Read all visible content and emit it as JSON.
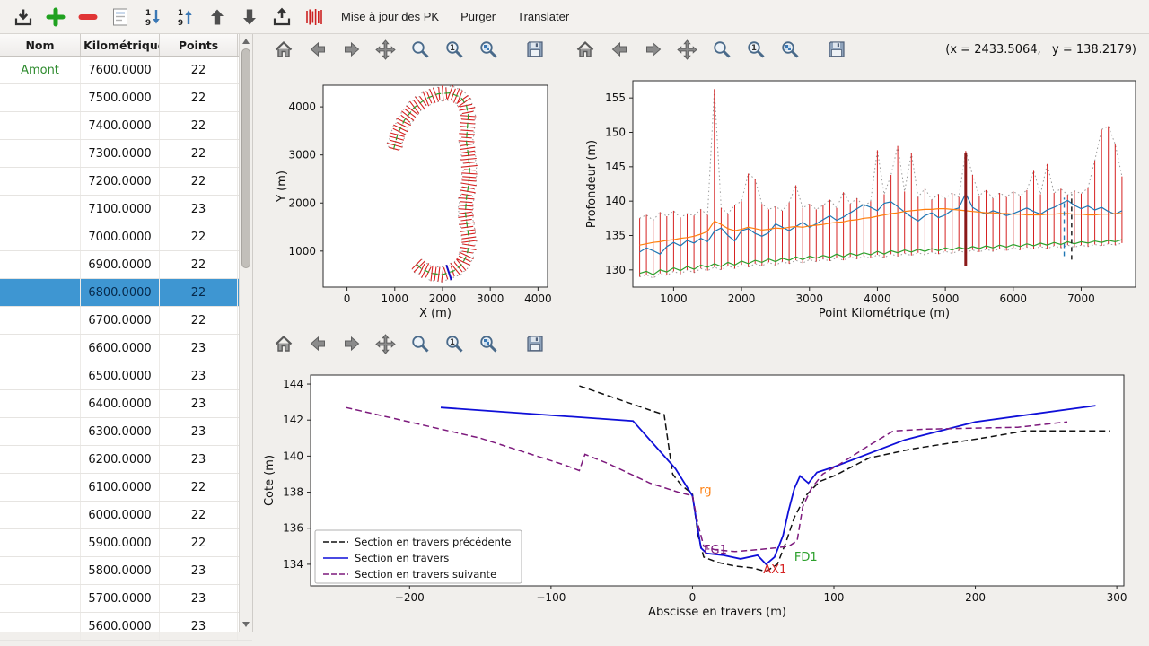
{
  "toolbar": {
    "icon_buttons": [
      "import",
      "add",
      "remove",
      "edit",
      "sort-descending",
      "sort-ascending",
      "move-up",
      "move-down",
      "export",
      "sections"
    ],
    "update_pk_label": "Mise à jour des PK",
    "purge_label": "Purger",
    "translate_label": "Translater"
  },
  "colors": {
    "selection_bg": "#3e96d2",
    "selection_text": "#07294a",
    "amont_green": "#2e8b2e"
  },
  "table": {
    "columns": [
      "Nom",
      "t Kilométrique",
      "Points"
    ],
    "selected_index": 8,
    "rows": [
      [
        "Amont",
        "7600.0000",
        "22"
      ],
      [
        "",
        "7500.0000",
        "22"
      ],
      [
        "",
        "7400.0000",
        "22"
      ],
      [
        "",
        "7300.0000",
        "22"
      ],
      [
        "",
        "7200.0000",
        "22"
      ],
      [
        "",
        "7100.0000",
        "23"
      ],
      [
        "",
        "7000.0000",
        "22"
      ],
      [
        "",
        "6900.0000",
        "22"
      ],
      [
        "",
        "6800.0000",
        "22"
      ],
      [
        "",
        "6700.0000",
        "22"
      ],
      [
        "",
        "6600.0000",
        "23"
      ],
      [
        "",
        "6500.0000",
        "23"
      ],
      [
        "",
        "6400.0000",
        "23"
      ],
      [
        "",
        "6300.0000",
        "23"
      ],
      [
        "",
        "6200.0000",
        "23"
      ],
      [
        "",
        "6100.0000",
        "22"
      ],
      [
        "",
        "6000.0000",
        "22"
      ],
      [
        "",
        "5900.0000",
        "22"
      ],
      [
        "",
        "5800.0000",
        "23"
      ],
      [
        "",
        "5700.0000",
        "23"
      ],
      [
        "",
        "5600.0000",
        "23"
      ]
    ]
  },
  "figures": {
    "coords_readout": "(x = 2433.5064,   y = 138.2179)"
  },
  "chart_data": [
    {
      "id": "plan",
      "type": "line",
      "title": "",
      "xlabel": "X (m)",
      "ylabel": "Y (m)",
      "xlim": [
        -500,
        4200
      ],
      "ylim": [
        250,
        4450
      ],
      "xticks": [
        0,
        1000,
        2000,
        3000,
        4000
      ],
      "yticks": [
        1000,
        2000,
        3000,
        4000
      ],
      "centerline_color": "#2ca02c",
      "section_color": "#d62222",
      "envelope_color": "#9a9a9a",
      "highlight_color": "#1111cc",
      "section_spacing": 75,
      "section_halfwidth": 150,
      "highlight_fraction": 0.887,
      "centerline": [
        [
          980,
          3130
        ],
        [
          1060,
          3430
        ],
        [
          1200,
          3720
        ],
        [
          1400,
          3980
        ],
        [
          1650,
          4170
        ],
        [
          1900,
          4270
        ],
        [
          2150,
          4290
        ],
        [
          2380,
          4200
        ],
        [
          2500,
          4030
        ],
        [
          2540,
          3820
        ],
        [
          2520,
          3560
        ],
        [
          2500,
          3280
        ],
        [
          2540,
          3000
        ],
        [
          2570,
          2700
        ],
        [
          2550,
          2400
        ],
        [
          2500,
          2100
        ],
        [
          2480,
          1800
        ],
        [
          2520,
          1500
        ],
        [
          2560,
          1200
        ],
        [
          2520,
          950
        ],
        [
          2420,
          740
        ],
        [
          2240,
          590
        ],
        [
          2000,
          510
        ],
        [
          1750,
          540
        ],
        [
          1550,
          640
        ],
        [
          1450,
          740
        ]
      ]
    },
    {
      "id": "profile",
      "type": "line",
      "title": "",
      "xlabel": "Point Kilométrique (m)",
      "ylabel": "Profondeur (m)",
      "xlim": [
        400,
        7800
      ],
      "ylim": [
        127.5,
        157.5
      ],
      "xticks": [
        1000,
        2000,
        3000,
        4000,
        5000,
        6000,
        7000
      ],
      "yticks": [
        130,
        135,
        140,
        145,
        150,
        155
      ],
      "bar_color": "#d62222",
      "envelope_color": "#9a9a9a",
      "pk_start": 500,
      "pk_step": 100,
      "bar_bottom": [
        129.0,
        129.3,
        128.8,
        129.5,
        129.2,
        129.8,
        129.4,
        130.0,
        129.6,
        130.2,
        129.9,
        130.4,
        130.0,
        130.6,
        130.2,
        130.8,
        130.4,
        130.9,
        130.6,
        131.1,
        130.7,
        131.2,
        130.9,
        131.4,
        131.0,
        131.5,
        131.2,
        131.6,
        131.3,
        131.8,
        131.4,
        131.9,
        131.6,
        132.0,
        131.7,
        132.2,
        131.8,
        132.3,
        132.0,
        132.4,
        132.1,
        132.5,
        132.2,
        132.6,
        132.3,
        132.7,
        132.4,
        132.8,
        132.5,
        132.9,
        132.6,
        133.0,
        132.7,
        133.1,
        132.8,
        133.2,
        132.9,
        133.3,
        133.0,
        133.4,
        133.1,
        133.5,
        133.2,
        133.6,
        133.3,
        133.6,
        133.4,
        133.7,
        133.5,
        133.8,
        133.6,
        133.9
      ],
      "bar_top": [
        137.5,
        138.0,
        137.2,
        138.4,
        137.8,
        138.6,
        137.6,
        138.2,
        137.9,
        138.8,
        138.0,
        156.3,
        139.0,
        138.2,
        139.4,
        140.0,
        144.0,
        143.2,
        139.6,
        138.8,
        139.2,
        138.6,
        139.8,
        142.3,
        139.0,
        139.6,
        138.8,
        139.4,
        140.2,
        139.0,
        141.3,
        139.6,
        140.4,
        139.2,
        140.0,
        147.4,
        141.0,
        143.8,
        148.0,
        141.4,
        147.0,
        140.6,
        141.8,
        140.2,
        141.0,
        140.4,
        141.2,
        140.6,
        147.3,
        143.8,
        140.8,
        141.6,
        140.4,
        141.2,
        140.6,
        141.4,
        140.8,
        141.6,
        144.4,
        141.0,
        145.4,
        141.2,
        141.8,
        140.9,
        141.5,
        141.1,
        141.9,
        145.9,
        150.4,
        150.9,
        148.3,
        143.6
      ],
      "series": [
        {
          "name": "blue",
          "color": "#1f77b4",
          "values": [
            132.6,
            133.2,
            132.8,
            132.3,
            133.4,
            134.0,
            133.5,
            134.3,
            133.9,
            134.6,
            134.1,
            135.6,
            136.1,
            135.0,
            134.2,
            135.7,
            136.0,
            135.3,
            134.9,
            135.4,
            136.7,
            136.2,
            135.7,
            136.3,
            136.9,
            136.2,
            136.7,
            137.3,
            137.9,
            137.2,
            137.7,
            138.3,
            138.9,
            139.5,
            139.1,
            138.6,
            139.7,
            139.9,
            139.2,
            138.4,
            137.7,
            137.1,
            137.9,
            138.3,
            137.6,
            138.0,
            138.7,
            139.0,
            141.1,
            139.1,
            138.5,
            138.1,
            138.6,
            138.3,
            137.9,
            138.2,
            138.6,
            139.0,
            138.5,
            138.1,
            138.7,
            139.1,
            139.6,
            140.1,
            139.4,
            138.9,
            139.3,
            138.7,
            139.1,
            138.5,
            138.1,
            138.6
          ]
        },
        {
          "name": "orange",
          "color": "#ff7f0e",
          "values": [
            133.6,
            133.8,
            134.0,
            134.1,
            134.3,
            134.4,
            134.6,
            134.7,
            134.9,
            135.2,
            135.6,
            137.1,
            136.6,
            136.0,
            135.7,
            135.9,
            136.2,
            136.0,
            135.8,
            135.9,
            136.1,
            136.0,
            136.2,
            136.3,
            136.2,
            136.4,
            136.5,
            136.6,
            136.8,
            136.9,
            137.0,
            137.2,
            137.3,
            137.5,
            137.6,
            137.8,
            138.0,
            138.2,
            138.3,
            138.5,
            138.6,
            138.7,
            138.8,
            138.8,
            138.9,
            138.9,
            138.8,
            138.7,
            138.6,
            138.5,
            138.4,
            138.3,
            138.3,
            138.2,
            138.2,
            138.1,
            138.1,
            138.0,
            138.0,
            138.0,
            138.1,
            138.1,
            138.2,
            138.2,
            138.1,
            138.1,
            138.0,
            138.0,
            138.1,
            138.1,
            138.2,
            138.2
          ]
        },
        {
          "name": "green",
          "color": "#2ca02c",
          "values": [
            129.5,
            129.8,
            129.3,
            130.0,
            129.7,
            130.3,
            129.9,
            130.5,
            130.1,
            130.7,
            130.4,
            130.9,
            130.5,
            131.1,
            130.7,
            131.3,
            130.9,
            131.4,
            131.1,
            131.6,
            131.2,
            131.7,
            131.4,
            131.9,
            131.5,
            132.0,
            131.7,
            132.1,
            131.8,
            132.3,
            131.9,
            132.4,
            132.1,
            132.5,
            132.2,
            132.7,
            132.3,
            132.8,
            132.5,
            132.9,
            132.6,
            133.0,
            132.7,
            133.1,
            132.8,
            133.2,
            132.9,
            133.3,
            133.0,
            133.4,
            133.1,
            133.5,
            133.2,
            133.6,
            133.3,
            133.7,
            133.4,
            133.8,
            133.5,
            133.9,
            133.6,
            134.0,
            133.7,
            134.1,
            133.8,
            134.1,
            133.9,
            134.2,
            134.0,
            134.3,
            134.1,
            134.4
          ]
        }
      ],
      "markers": [
        {
          "pk": 5300,
          "color": "#8b1a1a",
          "width": 3,
          "dash": false,
          "y0": 130.5,
          "y1": 147.0
        },
        {
          "pk": 6750,
          "color": "#1f77b4",
          "width": 1.4,
          "dash": true,
          "y0": 132.0,
          "y1": 140.5
        },
        {
          "pk": 6860,
          "color": "#111111",
          "width": 1.4,
          "dash": true,
          "y0": 131.5,
          "y1": 141.0
        }
      ]
    },
    {
      "id": "section",
      "type": "line",
      "title": "",
      "xlabel": "Abscisse en travers (m)",
      "ylabel": "Cote (m)",
      "xlim": [
        -270,
        305
      ],
      "ylim": [
        132.8,
        144.5
      ],
      "xticks": [
        -200,
        -100,
        0,
        100,
        200,
        300
      ],
      "yticks": [
        134,
        136,
        138,
        140,
        142,
        144
      ],
      "legend_position": "lower-left",
      "series": [
        {
          "name": "Section en travers précédente",
          "color": "#111111",
          "dash": true,
          "width": 1.5,
          "points": [
            [
              -80,
              143.9
            ],
            [
              -28,
              142.5
            ],
            [
              -20,
              142.3
            ],
            [
              -14,
              139.0
            ],
            [
              -8,
              138.4
            ],
            [
              0,
              137.9
            ],
            [
              4,
              135.6
            ],
            [
              8,
              134.4
            ],
            [
              18,
              134.1
            ],
            [
              30,
              133.9
            ],
            [
              42,
              133.8
            ],
            [
              52,
              133.6
            ],
            [
              60,
              134.0
            ],
            [
              66,
              135.2
            ],
            [
              72,
              136.6
            ],
            [
              80,
              137.8
            ],
            [
              90,
              138.6
            ],
            [
              100,
              138.9
            ],
            [
              125,
              139.9
            ],
            [
              155,
              140.4
            ],
            [
              205,
              141.0
            ],
            [
              235,
              141.4
            ],
            [
              295,
              141.4
            ]
          ]
        },
        {
          "name": "Section en travers",
          "color": "#0f0fd8",
          "dash": false,
          "width": 1.8,
          "points": [
            [
              -178,
              142.7
            ],
            [
              -42,
              141.95
            ],
            [
              -12,
              139.3
            ],
            [
              0,
              137.8
            ],
            [
              3,
              136.3
            ],
            [
              6,
              134.9
            ],
            [
              10,
              134.6
            ],
            [
              22,
              134.5
            ],
            [
              34,
              134.3
            ],
            [
              46,
              134.5
            ],
            [
              52,
              134.0
            ],
            [
              58,
              134.4
            ],
            [
              64,
              135.6
            ],
            [
              68,
              137.0
            ],
            [
              72,
              138.2
            ],
            [
              76,
              138.9
            ],
            [
              82,
              138.5
            ],
            [
              88,
              139.1
            ],
            [
              100,
              139.4
            ],
            [
              150,
              140.9
            ],
            [
              200,
              141.9
            ],
            [
              285,
              142.8
            ]
          ]
        },
        {
          "name": "Section en travers suivante",
          "color": "#7d1a7d",
          "dash": true,
          "width": 1.5,
          "points": [
            [
              -245,
              142.7
            ],
            [
              -150,
              141.0
            ],
            [
              -90,
              139.5
            ],
            [
              -80,
              139.2
            ],
            [
              -76,
              140.1
            ],
            [
              -60,
              139.6
            ],
            [
              -30,
              138.5
            ],
            [
              -10,
              138.0
            ],
            [
              0,
              137.8
            ],
            [
              4,
              136.2
            ],
            [
              8,
              135.0
            ],
            [
              16,
              134.8
            ],
            [
              30,
              134.7
            ],
            [
              45,
              134.8
            ],
            [
              58,
              134.9
            ],
            [
              68,
              135.0
            ],
            [
              74,
              135.3
            ],
            [
              78,
              137.2
            ],
            [
              84,
              138.2
            ],
            [
              92,
              139.0
            ],
            [
              105,
              139.6
            ],
            [
              125,
              140.6
            ],
            [
              142,
              141.4
            ],
            [
              165,
              141.5
            ],
            [
              230,
              141.6
            ],
            [
              265,
              141.9
            ]
          ]
        }
      ],
      "annotations": [
        {
          "text": "rg",
          "x": 5,
          "y": 137.9,
          "color": "#ff7f0e"
        },
        {
          "text": "FG1",
          "x": 8,
          "y": 134.6,
          "color": "#7d1a7d"
        },
        {
          "text": "AX1",
          "x": 50,
          "y": 133.5,
          "color": "#d62222"
        },
        {
          "text": "FD1",
          "x": 72,
          "y": 134.2,
          "color": "#2ca02c"
        }
      ]
    }
  ]
}
